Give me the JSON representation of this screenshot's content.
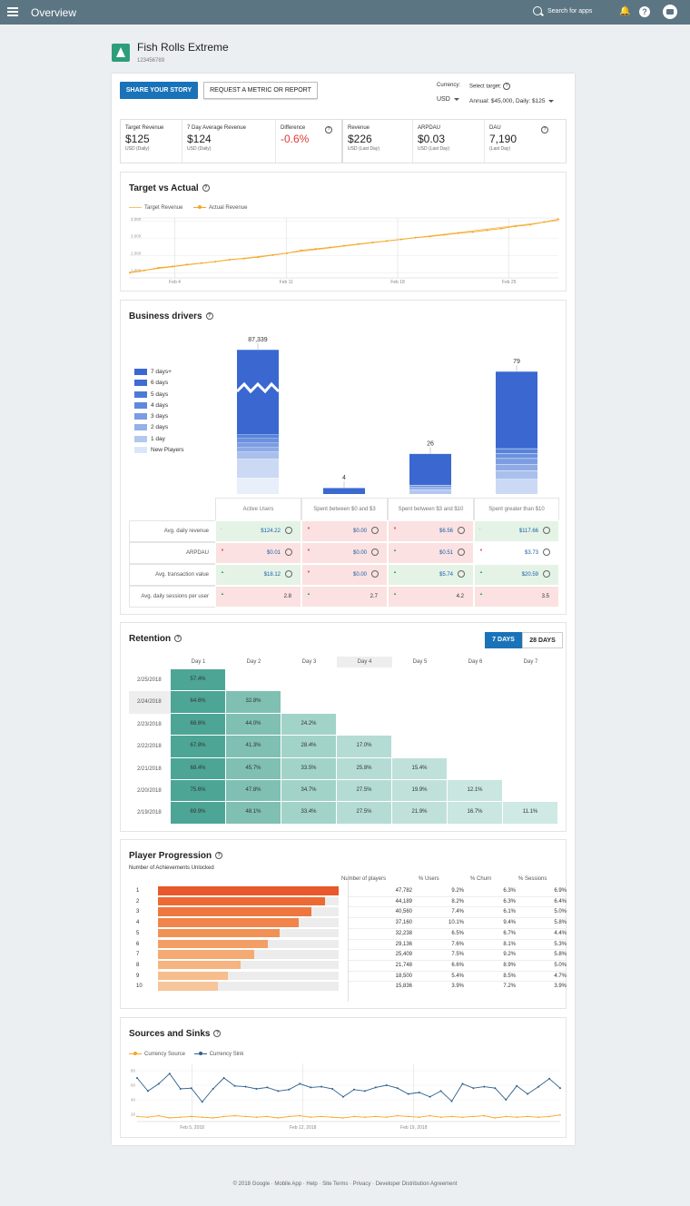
{
  "topbar": {
    "title": "Overview",
    "search_placeholder": "Search for apps"
  },
  "app": {
    "name": "Fish Rolls Extreme",
    "id": "123456789"
  },
  "actions": {
    "share": "SHARE YOUR STORY",
    "request": "REQUEST A METRIC OR REPORT"
  },
  "currency": {
    "label": "Currency:",
    "value": "USD"
  },
  "target": {
    "label": "Select target:",
    "value": "Annual: $45,000, Daily: $125"
  },
  "kpis": [
    {
      "label": "Target Revenue",
      "value": "$125",
      "unit": "USD (Daily)"
    },
    {
      "label": "7 Day Average Revenue",
      "value": "$124",
      "unit": "USD (Daily)"
    },
    {
      "label": "Difference",
      "value": "-0.6%",
      "unit": ""
    },
    {
      "label": "Revenue",
      "value": "$226",
      "unit": "USD (Last Day)"
    },
    {
      "label": "ARPDAU",
      "value": "$0.03",
      "unit": "USD (Last Day)"
    },
    {
      "label": "DAU",
      "value": "7,190",
      "unit": "(Last Day)"
    }
  ],
  "target_vs_actual": {
    "title": "Target vs Actual",
    "legend": [
      "Target Revenue",
      "Actual Revenue"
    ],
    "colors": {
      "target": "#f6c26b",
      "actual": "#f5a623"
    }
  },
  "business": {
    "title": "Business drivers",
    "legend": [
      "7 days+",
      "6 days",
      "5 days",
      "4 days",
      "3 days",
      "2 days",
      "1 day",
      "New Players"
    ],
    "legend_colors": [
      "#3a68d0",
      "#3e6cd2",
      "#4d7ad7",
      "#6089dc",
      "#7a9de2",
      "#94b1e8",
      "#b3c8ef",
      "#dde6f7"
    ],
    "bar_labels": [
      "87,339",
      "4",
      "26",
      "79"
    ],
    "columns": [
      "Active Users",
      "Spent between $0 and $3",
      "Spent between $3 and $10",
      "Spent greater than $10"
    ],
    "rows": [
      {
        "label": "Avg. daily revenue",
        "cells": [
          "$124.22",
          "$0.00",
          "$6.56",
          "$117.66"
        ],
        "tones": [
          "g",
          "r",
          "r",
          "g"
        ],
        "ind": [
          "-",
          "▼",
          "▼",
          "-"
        ]
      },
      {
        "label": "ARPDAU",
        "cells": [
          "$0.01",
          "$0.00",
          "$0.51",
          "$3.73"
        ],
        "tones": [
          "r",
          "r",
          "r",
          "w"
        ],
        "ind": [
          "▼",
          "▼",
          "▲",
          "▼"
        ]
      },
      {
        "label": "Avg. transaction value",
        "cells": [
          "$18.12",
          "$0.00",
          "$5.74",
          "$20.59"
        ],
        "tones": [
          "g",
          "r",
          "g",
          "g"
        ],
        "ind": [
          "▲",
          "▼",
          "▲",
          "▲"
        ]
      },
      {
        "label": "Avg. daily sessions per user",
        "cells": [
          "2.8",
          "2.7",
          "4.2",
          "3.5"
        ],
        "tones": [
          "r",
          "r",
          "r",
          "r"
        ],
        "ind": [
          "▲",
          "▲",
          "▲",
          "▲"
        ]
      }
    ]
  },
  "retention": {
    "title": "Retention",
    "btn7": "7 DAYS",
    "btn28": "28 DAYS",
    "days": [
      "Day 1",
      "Day 2",
      "Day 3",
      "Day 4",
      "Day 5",
      "Day 6",
      "Day 7"
    ],
    "rows": [
      {
        "date": "2/25/2018",
        "vals": [
          "57.4%"
        ]
      },
      {
        "date": "2/24/2018",
        "vals": [
          "64.6%",
          "32.8%"
        ]
      },
      {
        "date": "2/23/2018",
        "vals": [
          "68.6%",
          "44.0%",
          "24.2%"
        ]
      },
      {
        "date": "2/22/2018",
        "vals": [
          "67.8%",
          "41.3%",
          "28.4%",
          "17.0%"
        ]
      },
      {
        "date": "2/21/2018",
        "vals": [
          "68.4%",
          "45.7%",
          "33.5%",
          "25.8%",
          "15.4%"
        ]
      },
      {
        "date": "2/20/2018",
        "vals": [
          "75.6%",
          "47.8%",
          "34.7%",
          "27.5%",
          "19.9%",
          "12.1%"
        ]
      },
      {
        "date": "2/19/2018",
        "vals": [
          "69.9%",
          "48.1%",
          "33.4%",
          "27.5%",
          "21.9%",
          "16.7%",
          "11.1%"
        ]
      }
    ],
    "colors": [
      "#4da595",
      "#7fc0b3",
      "#a2d3c9",
      "#b5dcd4",
      "#bfe1da",
      "#c9e6e0",
      "#cfe9e4"
    ]
  },
  "progression": {
    "title": "Player Progression",
    "subtitle": "Number of Achievements Unlocked",
    "headers": [
      "Number of players",
      "% Users",
      "% Churn",
      "% Sessions"
    ],
    "rows": [
      {
        "n": "1",
        "players": "47,782",
        "users": "9.2%",
        "churn": "6.3%",
        "sessions": "6.9%",
        "frac": 1.0
      },
      {
        "n": "2",
        "players": "44,189",
        "users": "8.2%",
        "churn": "6.3%",
        "sessions": "6.4%",
        "frac": 0.925
      },
      {
        "n": "3",
        "players": "40,560",
        "users": "7.4%",
        "churn": "6.1%",
        "sessions": "5.0%",
        "frac": 0.849
      },
      {
        "n": "4",
        "players": "37,160",
        "users": "10.1%",
        "churn": "9.4%",
        "sessions": "5.8%",
        "frac": 0.778
      },
      {
        "n": "5",
        "players": "32,238",
        "users": "6.5%",
        "churn": "6.7%",
        "sessions": "4.4%",
        "frac": 0.675
      },
      {
        "n": "6",
        "players": "29,136",
        "users": "7.6%",
        "churn": "8.1%",
        "sessions": "5.3%",
        "frac": 0.61
      },
      {
        "n": "7",
        "players": "25,409",
        "users": "7.5%",
        "churn": "9.2%",
        "sessions": "5.8%",
        "frac": 0.532
      },
      {
        "n": "8",
        "players": "21,748",
        "users": "6.6%",
        "churn": "8.9%",
        "sessions": "5.0%",
        "frac": 0.455
      },
      {
        "n": "9",
        "players": "18,500",
        "users": "5.4%",
        "churn": "8.5%",
        "sessions": "4.7%",
        "frac": 0.387
      },
      {
        "n": "10",
        "players": "15,836",
        "users": "3.9%",
        "churn": "7.2%",
        "sessions": "3.9%",
        "frac": 0.331
      }
    ],
    "bar_colors": [
      "#e8582a",
      "#ec6a34",
      "#ee773f",
      "#f0844a",
      "#f29155",
      "#f39e64",
      "#f4aa72",
      "#f5b480",
      "#f6bd8d",
      "#f7c59a"
    ]
  },
  "sources": {
    "title": "Sources and Sinks",
    "legend": [
      "Currency Source",
      "Currency Sink"
    ],
    "colors": {
      "source": "#f5a623",
      "sink": "#2d5f8b"
    }
  },
  "chart_data": [
    {
      "type": "line",
      "title": "Target vs Actual",
      "series": [
        {
          "name": "Target Revenue",
          "values": [
            1050,
            1150,
            1250,
            1350,
            1450,
            1550,
            1650,
            1750,
            1850,
            1950,
            2050,
            2150,
            2250,
            2350,
            2450,
            2550,
            2650,
            2750,
            2850,
            2950,
            3050,
            3150,
            3250,
            3350,
            3450,
            3550,
            3650,
            3750,
            3850,
            3950,
            4050
          ]
        },
        {
          "name": "Actual Revenue",
          "values": [
            1000,
            1130,
            1290,
            1370,
            1480,
            1560,
            1650,
            1770,
            1830,
            1910,
            2030,
            2140,
            2310,
            2390,
            2480,
            2580,
            2680,
            2770,
            2860,
            2950,
            3050,
            3120,
            3210,
            3310,
            3380,
            3480,
            3580,
            3710,
            3800,
            3960,
            4130
          ]
        }
      ],
      "x_ticks": [
        "Feb 4",
        "Feb 11",
        "Feb 18",
        "Feb 25"
      ],
      "y_ticks": [
        1000,
        2000,
        3000,
        4000
      ],
      "ylim": [
        700,
        4200
      ]
    },
    {
      "type": "bar",
      "title": "Business drivers",
      "categories": [
        "Active Users",
        "Spent between $0 and $3",
        "Spent between $3 and $10",
        "Spent greater than $10"
      ],
      "values": [
        87339,
        4,
        26,
        79
      ]
    },
    {
      "type": "line",
      "title": "Sources and Sinks",
      "series": [
        {
          "name": "Currency Source",
          "values": [
            17,
            16,
            18,
            15,
            16,
            17,
            16,
            15,
            17,
            18,
            17,
            16,
            17,
            15,
            17,
            18,
            16,
            17,
            16,
            15,
            17,
            16,
            17,
            16,
            18,
            17,
            16,
            18,
            16,
            17,
            16,
            17,
            18,
            15,
            17,
            16,
            17,
            16,
            17,
            19
          ]
        },
        {
          "name": "Currency Sink",
          "values": [
            70,
            52,
            62,
            76,
            55,
            56,
            37,
            55,
            70,
            59,
            58,
            55,
            57,
            52,
            54,
            62,
            57,
            58,
            55,
            44,
            54,
            52,
            57,
            60,
            56,
            48,
            50,
            44,
            52,
            38,
            62,
            56,
            58,
            56,
            40,
            59,
            48,
            58,
            69,
            56
          ]
        }
      ],
      "x_ticks": [
        "Feb 5, 2018",
        "Feb 12, 2018",
        "Feb 19, 2018"
      ],
      "y_ticks": [
        20,
        40,
        60,
        80
      ]
    }
  ]
}
